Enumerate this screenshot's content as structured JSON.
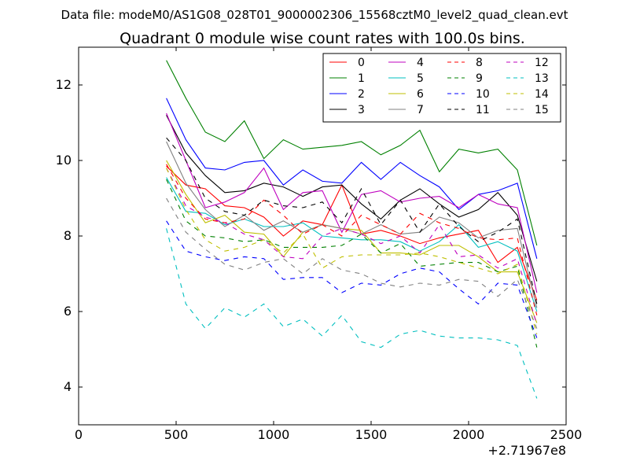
{
  "chart_data": {
    "type": "line",
    "suptitle": "Data file: modeM0/AS1G08_028T01_9000002306_15568cztM0_level2_quad_clean.evt",
    "title": "Quadrant 0 module wise count rates with 100.0s bins.",
    "xlabel": "",
    "ylabel": "",
    "x_offset_label": "+2.71967e8",
    "xlim": [
      0,
      2500
    ],
    "ylim": [
      3,
      13
    ],
    "xticks": [
      0,
      500,
      1000,
      1500,
      2000,
      2500
    ],
    "xtick_labels": [
      "0",
      "500",
      "1000",
      "1500",
      "2000",
      "2500"
    ],
    "yticks": [
      4,
      6,
      8,
      10,
      12
    ],
    "ytick_labels": [
      "4",
      "6",
      "8",
      "10",
      "12"
    ],
    "grid": false,
    "legend_position": "top-right",
    "x": [
      450,
      550,
      650,
      750,
      850,
      950,
      1050,
      1150,
      1250,
      1350,
      1450,
      1550,
      1650,
      1750,
      1850,
      1950,
      2050,
      2150,
      2250,
      2350
    ],
    "series": [
      {
        "name": "0",
        "color": "#ff0000",
        "dash": "solid",
        "values": [
          9.85,
          9.35,
          9.25,
          8.8,
          8.75,
          8.5,
          8.0,
          8.4,
          8.3,
          9.35,
          8.05,
          8.15,
          8.0,
          7.8,
          7.95,
          8.05,
          8.15,
          7.3,
          7.7,
          6.3
        ]
      },
      {
        "name": "1",
        "color": "#008000",
        "dash": "solid",
        "values": [
          12.65,
          11.65,
          10.75,
          10.5,
          11.05,
          10.05,
          10.55,
          10.3,
          10.35,
          10.4,
          10.5,
          10.15,
          10.4,
          10.8,
          9.7,
          10.3,
          10.2,
          10.3,
          9.75,
          7.75
        ]
      },
      {
        "name": "2",
        "color": "#0000ff",
        "dash": "solid",
        "values": [
          11.65,
          10.55,
          9.8,
          9.75,
          9.95,
          10.0,
          9.35,
          9.75,
          9.45,
          9.4,
          9.95,
          9.5,
          9.95,
          9.6,
          9.3,
          8.7,
          9.1,
          9.2,
          9.4,
          7.4
        ]
      },
      {
        "name": "3",
        "color": "#000000",
        "dash": "solid",
        "values": [
          11.2,
          10.2,
          9.6,
          9.15,
          9.2,
          9.4,
          9.3,
          9.05,
          9.3,
          9.35,
          8.85,
          8.45,
          8.95,
          9.25,
          8.85,
          8.5,
          8.7,
          9.15,
          8.55,
          6.8
        ]
      },
      {
        "name": "4",
        "color": "#bf00bf",
        "dash": "solid",
        "values": [
          11.25,
          10.0,
          8.75,
          8.9,
          9.15,
          9.8,
          8.7,
          9.15,
          9.2,
          8.1,
          9.1,
          9.2,
          8.9,
          9.0,
          9.05,
          8.75,
          9.1,
          8.85,
          8.75,
          6.5
        ]
      },
      {
        "name": "5",
        "color": "#00bfbf",
        "dash": "solid",
        "values": [
          9.55,
          8.65,
          8.6,
          8.3,
          8.45,
          8.25,
          8.25,
          8.35,
          8.0,
          7.95,
          7.9,
          7.9,
          7.85,
          7.6,
          7.85,
          8.3,
          7.7,
          7.85,
          7.6,
          6.0
        ]
      },
      {
        "name": "6",
        "color": "#bfbf00",
        "dash": "solid",
        "values": [
          10.0,
          9.1,
          8.35,
          8.55,
          8.1,
          8.05,
          7.45,
          8.1,
          8.3,
          8.2,
          8.15,
          7.55,
          7.55,
          7.5,
          7.75,
          7.75,
          7.45,
          7.05,
          7.05,
          5.7
        ]
      },
      {
        "name": "7",
        "color": "#808080",
        "dash": "solid",
        "values": [
          10.5,
          9.4,
          8.7,
          8.25,
          8.55,
          8.15,
          8.4,
          8.1,
          8.3,
          8.2,
          8.05,
          8.3,
          8.05,
          8.1,
          8.5,
          8.35,
          7.95,
          8.15,
          8.2,
          6.1
        ]
      },
      {
        "name": "8",
        "color": "#ff0000",
        "dash": "dashed",
        "values": [
          9.9,
          9.0,
          8.45,
          8.35,
          8.45,
          8.95,
          8.55,
          8.05,
          8.3,
          8.0,
          8.55,
          8.3,
          8.05,
          8.6,
          8.35,
          8.2,
          7.95,
          7.9,
          7.95,
          5.9
        ]
      },
      {
        "name": "9",
        "color": "#008000",
        "dash": "dashed",
        "values": [
          9.5,
          8.4,
          8.0,
          7.95,
          7.85,
          7.9,
          7.7,
          7.7,
          7.7,
          7.75,
          8.05,
          7.55,
          7.8,
          7.2,
          7.25,
          7.3,
          7.3,
          7.05,
          7.2,
          5.05
        ]
      },
      {
        "name": "10",
        "color": "#0000ff",
        "dash": "dashed",
        "values": [
          8.4,
          7.6,
          7.45,
          7.35,
          7.45,
          7.4,
          6.85,
          6.9,
          6.9,
          6.5,
          6.75,
          6.7,
          7.0,
          7.15,
          7.05,
          6.6,
          6.2,
          6.75,
          6.7,
          5.3
        ]
      },
      {
        "name": "11",
        "color": "#000000",
        "dash": "dashed",
        "values": [
          10.6,
          10.0,
          9.0,
          8.65,
          8.55,
          8.95,
          8.8,
          8.75,
          8.9,
          8.35,
          9.25,
          8.3,
          8.95,
          8.1,
          8.85,
          8.25,
          7.85,
          8.1,
          8.45,
          6.2
        ]
      },
      {
        "name": "12",
        "color": "#bf00bf",
        "dash": "dashed",
        "values": [
          9.8,
          8.8,
          8.5,
          8.35,
          8.05,
          7.9,
          7.45,
          7.4,
          8.0,
          8.2,
          8.05,
          7.8,
          8.0,
          7.55,
          8.3,
          7.45,
          7.5,
          7.15,
          7.4,
          5.65
        ]
      },
      {
        "name": "13",
        "color": "#00bfbf",
        "dash": "dashed",
        "values": [
          8.2,
          6.2,
          5.55,
          6.1,
          5.85,
          6.2,
          5.6,
          5.8,
          5.35,
          5.9,
          5.2,
          5.05,
          5.4,
          5.5,
          5.35,
          5.3,
          5.3,
          5.25,
          5.1,
          3.7
        ]
      },
      {
        "name": "14",
        "color": "#bfbf00",
        "dash": "dashed",
        "values": [
          9.8,
          8.7,
          7.9,
          7.6,
          7.7,
          7.9,
          7.55,
          8.05,
          7.15,
          7.45,
          7.5,
          7.5,
          7.5,
          7.55,
          7.45,
          7.3,
          7.15,
          7.0,
          7.25,
          5.4
        ]
      },
      {
        "name": "15",
        "color": "#808080",
        "dash": "dashed",
        "values": [
          9.0,
          8.1,
          7.65,
          7.25,
          7.1,
          7.3,
          7.4,
          7.0,
          7.4,
          7.1,
          7.0,
          6.75,
          6.65,
          6.75,
          6.7,
          6.85,
          6.8,
          6.4,
          6.85,
          5.55
        ]
      }
    ]
  }
}
